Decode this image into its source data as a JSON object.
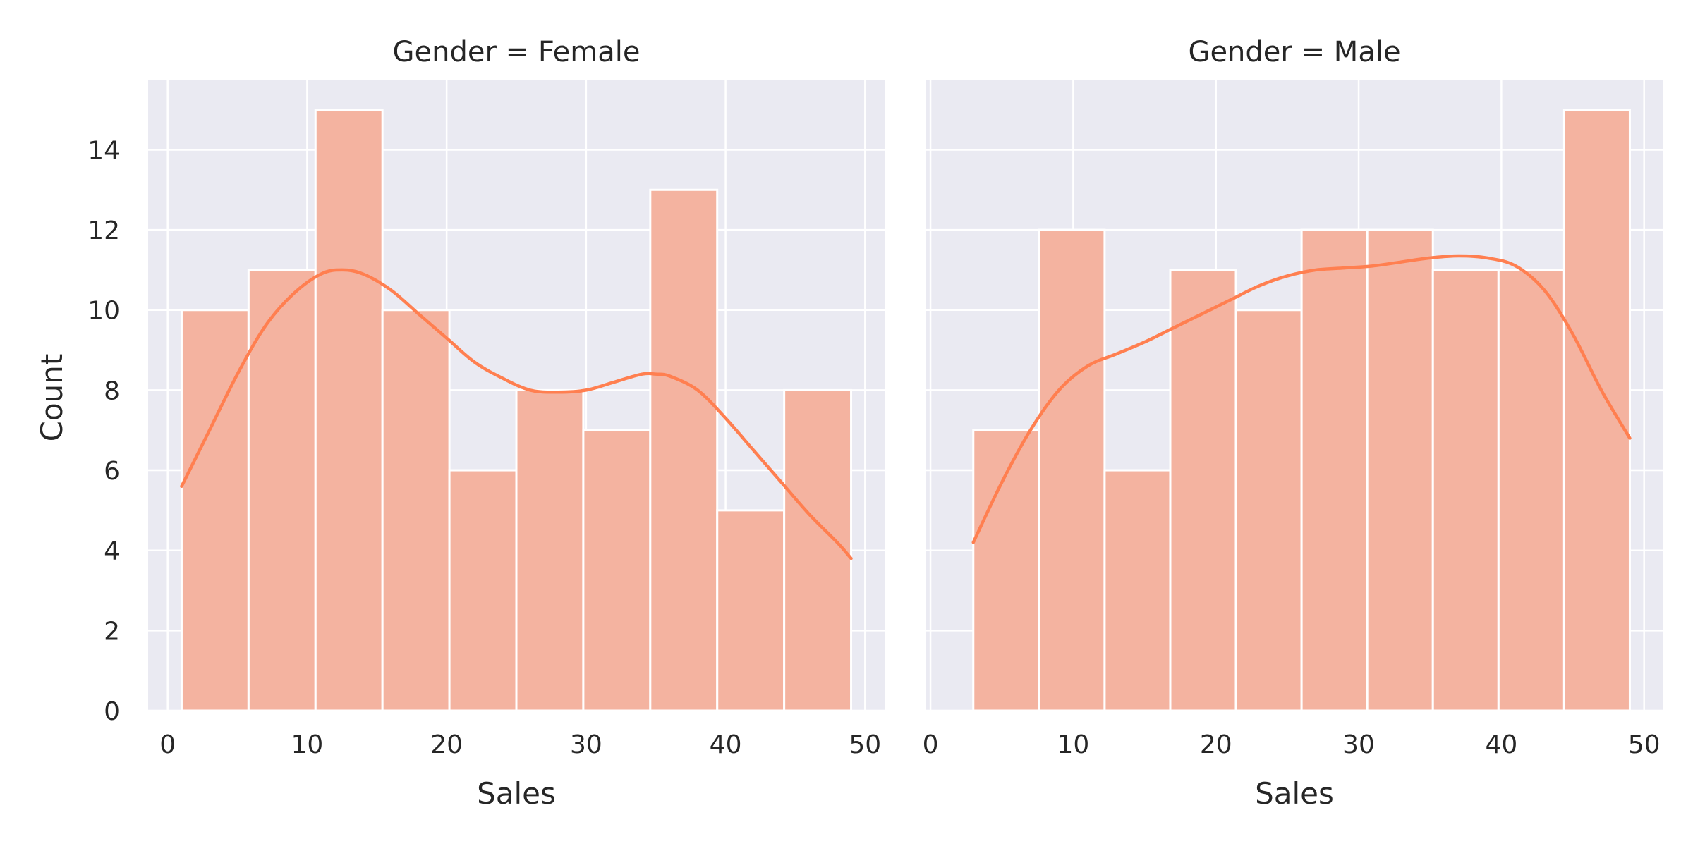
{
  "chart_data": [
    {
      "type": "bar",
      "title": "Gender = Female",
      "xlabel": "Sales",
      "ylabel": "Count",
      "xlim": [
        -1.4,
        51.4
      ],
      "ylim": [
        0,
        15.75
      ],
      "xticks": [
        0,
        10,
        20,
        30,
        40,
        50
      ],
      "yticks": [
        0,
        2,
        4,
        6,
        8,
        10,
        12,
        14
      ],
      "grid": true,
      "bin_edges": [
        1,
        5.8,
        10.6,
        15.4,
        20.2,
        25,
        29.8,
        34.6,
        39.4,
        44.2,
        49
      ],
      "values": [
        10,
        11,
        15,
        10,
        6,
        8,
        7,
        13,
        5,
        8
      ],
      "kde": {
        "x": [
          1,
          3,
          5,
          7,
          9,
          11,
          12.5,
          14,
          16,
          18,
          20,
          22,
          24,
          26,
          28,
          30,
          32,
          34,
          35,
          36,
          38,
          40,
          42,
          44,
          46,
          48,
          49
        ],
        "y": [
          5.6,
          7.0,
          8.4,
          9.6,
          10.4,
          10.9,
          11.0,
          10.9,
          10.5,
          9.9,
          9.3,
          8.7,
          8.3,
          8.0,
          7.95,
          8.0,
          8.2,
          8.4,
          8.4,
          8.35,
          8.0,
          7.3,
          6.5,
          5.7,
          4.9,
          4.2,
          3.8
        ]
      }
    },
    {
      "type": "bar",
      "title": "Gender = Male",
      "xlabel": "Sales",
      "ylabel": "",
      "xlim": [
        -0.3,
        51.3
      ],
      "ylim": [
        0,
        15.75
      ],
      "xticks": [
        0,
        10,
        20,
        30,
        40,
        50
      ],
      "yticks": [
        0,
        2,
        4,
        6,
        8,
        10,
        12,
        14
      ],
      "grid": true,
      "bin_edges": [
        3,
        7.6,
        12.2,
        16.8,
        21.4,
        26,
        30.6,
        35.2,
        39.8,
        44.4,
        49
      ],
      "values": [
        7,
        12,
        6,
        11,
        10,
        12,
        12,
        11,
        11,
        15
      ],
      "kde": {
        "x": [
          3,
          5,
          7,
          9,
          11,
          13,
          15,
          17,
          19,
          21,
          23,
          25,
          27,
          29,
          31,
          33,
          35,
          37,
          39,
          41,
          43,
          45,
          47,
          49
        ],
        "y": [
          4.2,
          5.7,
          7.0,
          8.0,
          8.6,
          8.9,
          9.2,
          9.55,
          9.9,
          10.25,
          10.6,
          10.85,
          11.0,
          11.05,
          11.1,
          11.2,
          11.3,
          11.35,
          11.3,
          11.1,
          10.5,
          9.4,
          8.0,
          6.8
        ]
      }
    }
  ],
  "colors": {
    "bar_fill": "#f4b3a0",
    "bar_edge": "#ffffff",
    "kde_line": "#ff7f50",
    "panel_bg": "#eaeaf2",
    "grid": "#ffffff",
    "text": "#262626"
  }
}
